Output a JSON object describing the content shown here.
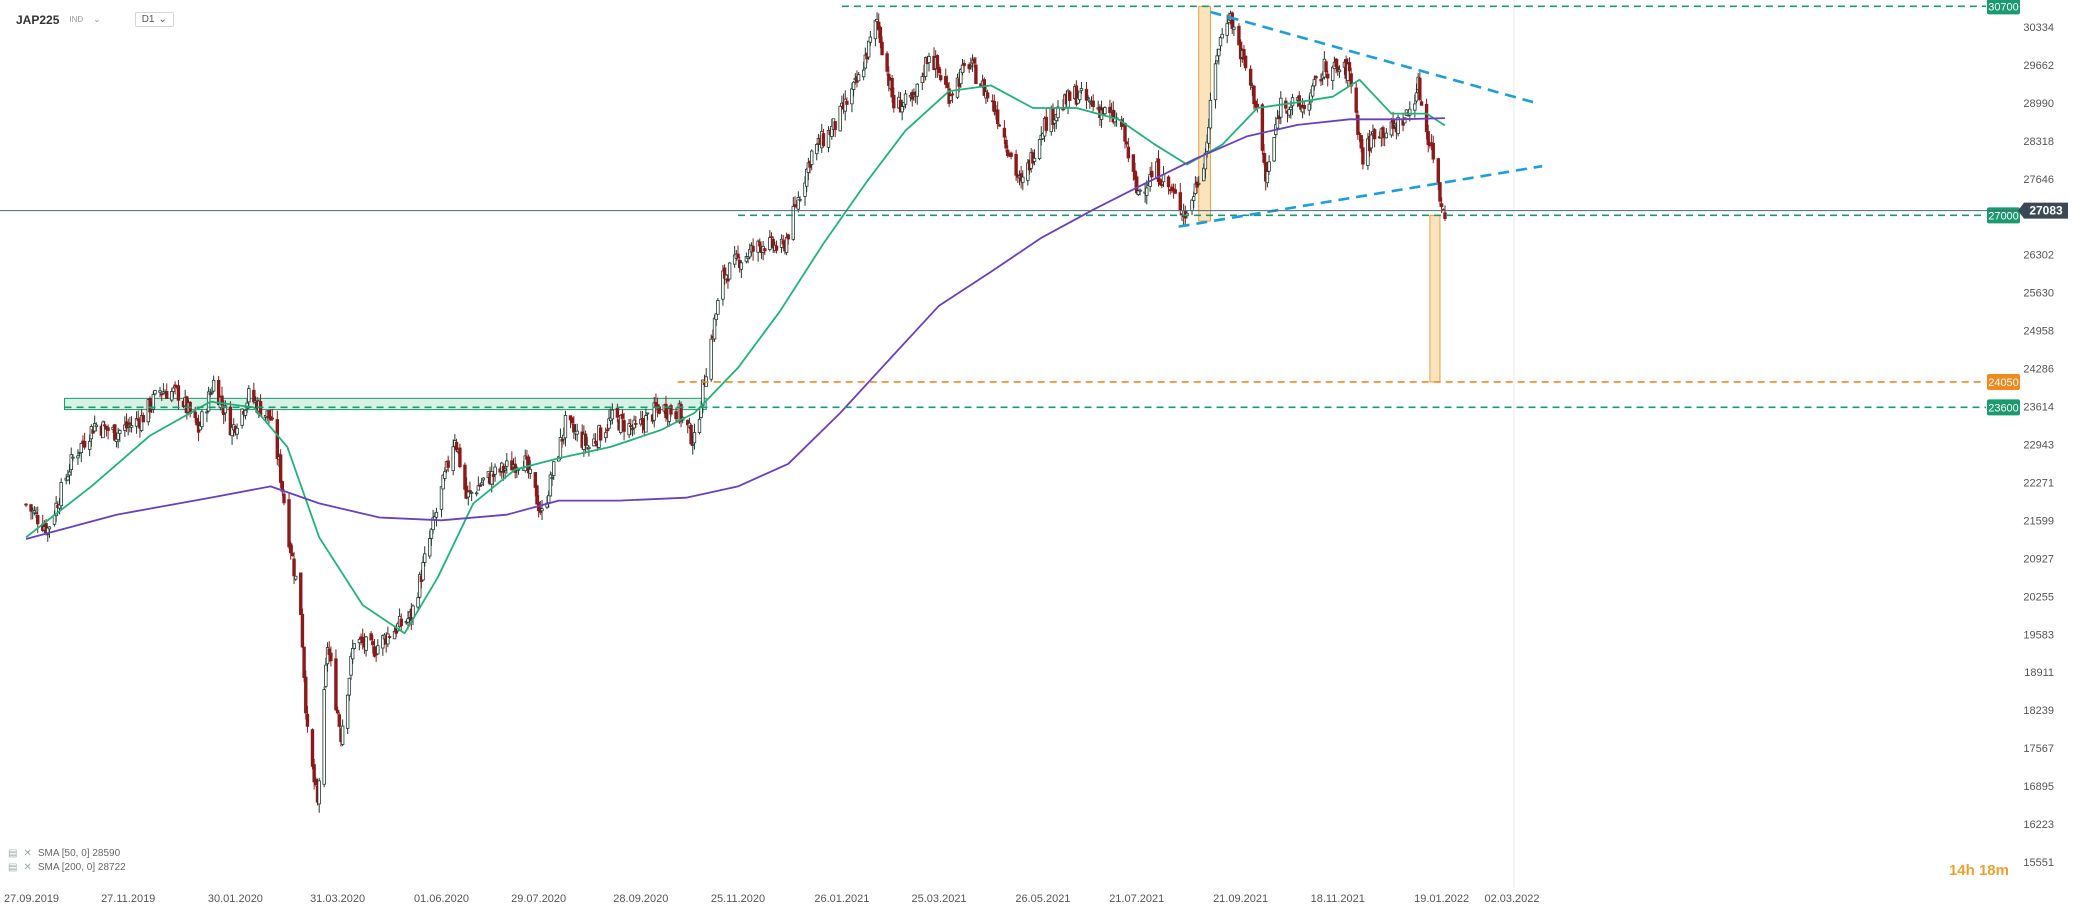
{
  "header": {
    "symbol": "JAP225",
    "badge": "IND",
    "timeframe": "D1"
  },
  "legend": {
    "sma50": "SMA [50, 0] 28590",
    "sma200": "SMA [200, 0] 28722"
  },
  "timer": {
    "hours": "14h",
    "minutes": "18m"
  },
  "colors": {
    "up": "#1f3a2e",
    "down": "#8b1a1a",
    "sma50": "#1fb37a",
    "sma200": "#6a3fc0",
    "teal_level": "#1a9a6e",
    "orange_level": "#f0891e",
    "trend": "#1a9ee0",
    "price_line": "#4a6a7a",
    "highlight_fill": "#f9d9a8",
    "highlight_stroke": "#e8a040"
  },
  "chart_data": {
    "type": "candlestick",
    "title": "",
    "xlabel": "",
    "ylabel": "",
    "ylim": [
      15551,
      31000
    ],
    "y_ticks": [
      "30334",
      "29662",
      "28990",
      "28318",
      "27646",
      "26302",
      "25630",
      "24958",
      "24286",
      "23614",
      "22943",
      "22271",
      "21599",
      "20927",
      "20255",
      "19583",
      "18911",
      "18239",
      "17567",
      "16895",
      "16223",
      "15551"
    ],
    "x_ticks": [
      "27.09.2019",
      "27.11.2019",
      "30.01.2020",
      "31.03.2020",
      "01.06.2020",
      "29.07.2020",
      "28.09.2020",
      "25.11.2020",
      "26.01.2021",
      "25.03.2021",
      "26.05.2021",
      "21.07.2021",
      "21.09.2021",
      "18.11.2021",
      "19.01.2022",
      "02.03.2022"
    ],
    "x_range": [
      "2019-09-27",
      "2022-03-02"
    ],
    "last_price": "27083",
    "levels": [
      {
        "value": 30700,
        "label": "30700",
        "style": "teal",
        "from": "2021-01-26"
      },
      {
        "value": 27000,
        "label": "27000",
        "style": "teal",
        "from": "2020-11-25"
      },
      {
        "value": 24050,
        "label": "24050",
        "style": "orange",
        "from": "2020-10-20"
      },
      {
        "value": 23600,
        "label": "23600",
        "style": "teal",
        "from": "2019-10-20"
      }
    ],
    "zone": {
      "from": "2019-10-20",
      "to": "2020-11-06",
      "low": 23560,
      "high": 23760
    },
    "measure_boxes": [
      {
        "from": "2021-08-27",
        "to": "2021-09-03",
        "low": 26900,
        "high": 30700
      },
      {
        "from": "2022-01-12",
        "to": "2022-01-18",
        "low": 24050,
        "high": 27000
      }
    ],
    "trendlines": [
      {
        "x1": "2021-09-03",
        "y1": 30600,
        "x2": "2022-03-15",
        "y2": 29000
      },
      {
        "x1": "2021-08-15",
        "y1": 26800,
        "x2": "2022-03-20",
        "y2": 27870
      }
    ],
    "price_path": [
      [
        "2019-09-27",
        21880
      ],
      [
        "2019-10-10",
        21450
      ],
      [
        "2019-10-25",
        22700
      ],
      [
        "2019-11-07",
        23300
      ],
      [
        "2019-11-20",
        23150
      ],
      [
        "2019-12-05",
        23400
      ],
      [
        "2019-12-16",
        23900
      ],
      [
        "2019-12-27",
        23850
      ],
      [
        "2020-01-08",
        23200
      ],
      [
        "2020-01-17",
        24050
      ],
      [
        "2020-01-28",
        23200
      ],
      [
        "2020-02-07",
        23800
      ],
      [
        "2020-02-20",
        23400
      ],
      [
        "2020-02-25",
        22600
      ],
      [
        "2020-03-02",
        21300
      ],
      [
        "2020-03-09",
        20000
      ],
      [
        "2020-03-13",
        17800
      ],
      [
        "2020-03-19",
        16550
      ],
      [
        "2020-03-25",
        19400
      ],
      [
        "2020-04-02",
        17800
      ],
      [
        "2020-04-10",
        19500
      ],
      [
        "2020-04-21",
        19300
      ],
      [
        "2020-05-01",
        19600
      ],
      [
        "2020-05-14",
        19900
      ],
      [
        "2020-05-27",
        21500
      ],
      [
        "2020-06-09",
        23100
      ],
      [
        "2020-06-16",
        22000
      ],
      [
        "2020-06-26",
        22300
      ],
      [
        "2020-07-08",
        22500
      ],
      [
        "2020-07-20",
        22700
      ],
      [
        "2020-07-31",
        21700
      ],
      [
        "2020-08-14",
        23300
      ],
      [
        "2020-08-28",
        22900
      ],
      [
        "2020-09-11",
        23400
      ],
      [
        "2020-09-25",
        23200
      ],
      [
        "2020-10-09",
        23600
      ],
      [
        "2020-10-21",
        23500
      ],
      [
        "2020-10-30",
        22990
      ],
      [
        "2020-11-06",
        24300
      ],
      [
        "2020-11-16",
        25900
      ],
      [
        "2020-11-25",
        26200
      ],
      [
        "2020-12-10",
        26500
      ],
      [
        "2020-12-22",
        26400
      ],
      [
        "2021-01-08",
        28100
      ],
      [
        "2021-01-22",
        28600
      ],
      [
        "2021-02-05",
        29400
      ],
      [
        "2021-02-16",
        30450
      ],
      [
        "2021-02-26",
        28950
      ],
      [
        "2021-03-10",
        29000
      ],
      [
        "2021-03-19",
        29900
      ],
      [
        "2021-03-31",
        29150
      ],
      [
        "2021-04-12",
        29700
      ],
      [
        "2021-04-28",
        28850
      ],
      [
        "2021-05-13",
        27500
      ],
      [
        "2021-05-26",
        28600
      ],
      [
        "2021-06-14",
        29150
      ],
      [
        "2021-06-28",
        28900
      ],
      [
        "2021-07-12",
        28600
      ],
      [
        "2021-07-21",
        27400
      ],
      [
        "2021-08-02",
        27800
      ],
      [
        "2021-08-20",
        27000
      ],
      [
        "2021-08-31",
        28100
      ],
      [
        "2021-09-07",
        29900
      ],
      [
        "2021-09-14",
        30600
      ],
      [
        "2021-09-22",
        29800
      ],
      [
        "2021-10-01",
        28900
      ],
      [
        "2021-10-06",
        27600
      ],
      [
        "2021-10-15",
        29000
      ],
      [
        "2021-10-29",
        28900
      ],
      [
        "2021-11-10",
        29600
      ],
      [
        "2021-11-25",
        29550
      ],
      [
        "2021-12-03",
        28000
      ],
      [
        "2021-12-10",
        28500
      ],
      [
        "2021-12-20",
        28500
      ],
      [
        "2021-12-30",
        28800
      ],
      [
        "2022-01-05",
        29300
      ],
      [
        "2022-01-10",
        28500
      ],
      [
        "2022-01-14",
        28100
      ],
      [
        "2022-01-18",
        27300
      ],
      [
        "2022-01-21",
        27083
      ]
    ],
    "series": [
      {
        "name": "SMA [50, 0]",
        "last": 28590,
        "path": [
          [
            "2019-09-27",
            21300
          ],
          [
            "2019-11-05",
            22200
          ],
          [
            "2019-12-10",
            23100
          ],
          [
            "2020-01-15",
            23700
          ],
          [
            "2020-02-10",
            23600
          ],
          [
            "2020-03-01",
            22900
          ],
          [
            "2020-03-20",
            21300
          ],
          [
            "2020-04-15",
            20100
          ],
          [
            "2020-05-10",
            19600
          ],
          [
            "2020-05-30",
            20600
          ],
          [
            "2020-06-20",
            21900
          ],
          [
            "2020-07-15",
            22500
          ],
          [
            "2020-08-10",
            22700
          ],
          [
            "2020-09-10",
            22900
          ],
          [
            "2020-10-10",
            23200
          ],
          [
            "2020-10-30",
            23500
          ],
          [
            "2020-11-25",
            24300
          ],
          [
            "2020-12-20",
            25300
          ],
          [
            "2021-01-15",
            26500
          ],
          [
            "2021-02-10",
            27600
          ],
          [
            "2021-03-05",
            28500
          ],
          [
            "2021-03-31",
            29200
          ],
          [
            "2021-04-25",
            29300
          ],
          [
            "2021-05-20",
            28900
          ],
          [
            "2021-06-15",
            28900
          ],
          [
            "2021-07-10",
            28700
          ],
          [
            "2021-08-01",
            28250
          ],
          [
            "2021-08-20",
            27900
          ],
          [
            "2021-09-10",
            28250
          ],
          [
            "2021-10-01",
            28900
          ],
          [
            "2021-10-25",
            29000
          ],
          [
            "2021-11-15",
            29100
          ],
          [
            "2021-12-01",
            29400
          ],
          [
            "2021-12-20",
            28800
          ],
          [
            "2022-01-10",
            28800
          ],
          [
            "2022-01-21",
            28590
          ]
        ]
      },
      {
        "name": "SMA [200, 0]",
        "last": 28722,
        "path": [
          [
            "2019-09-27",
            21270
          ],
          [
            "2019-11-20",
            21700
          ],
          [
            "2020-01-15",
            22000
          ],
          [
            "2020-02-20",
            22200
          ],
          [
            "2020-03-20",
            21900
          ],
          [
            "2020-04-25",
            21650
          ],
          [
            "2020-06-01",
            21600
          ],
          [
            "2020-07-10",
            21700
          ],
          [
            "2020-08-10",
            21950
          ],
          [
            "2020-09-15",
            21950
          ],
          [
            "2020-10-25",
            22000
          ],
          [
            "2020-11-25",
            22200
          ],
          [
            "2020-12-25",
            22600
          ],
          [
            "2021-01-25",
            23500
          ],
          [
            "2021-02-25",
            24500
          ],
          [
            "2021-03-25",
            25400
          ],
          [
            "2021-04-25",
            26000
          ],
          [
            "2021-05-25",
            26600
          ],
          [
            "2021-06-25",
            27100
          ],
          [
            "2021-07-25",
            27550
          ],
          [
            "2021-08-25",
            28000
          ],
          [
            "2021-09-25",
            28400
          ],
          [
            "2021-10-25",
            28600
          ],
          [
            "2021-11-25",
            28700
          ],
          [
            "2021-12-25",
            28700
          ],
          [
            "2022-01-21",
            28722
          ]
        ]
      }
    ]
  }
}
